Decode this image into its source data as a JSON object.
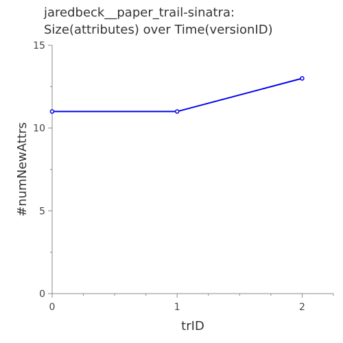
{
  "chart_data": {
    "type": "line",
    "title": [
      "jaredbeck__paper_trail-sinatra:",
      "Size(attributes) over Time(versionID)"
    ],
    "xlabel": "trID",
    "ylabel": "#numNewAttrs",
    "x": [
      0,
      1,
      2
    ],
    "series": [
      {
        "values": [
          11,
          11,
          13
        ],
        "color": "#0000ee"
      }
    ],
    "xlim": [
      0,
      2.25
    ],
    "ylim": [
      0,
      15
    ],
    "xticks": [
      0,
      1,
      2
    ],
    "yticks": [
      0,
      5,
      10,
      15
    ],
    "grid": false,
    "legend": "none"
  }
}
